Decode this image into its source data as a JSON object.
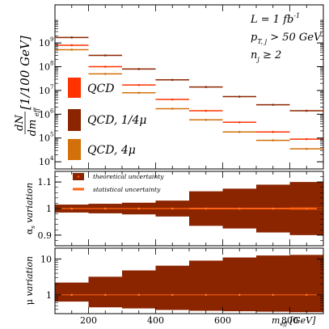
{
  "chart_data": [
    {
      "type": "scatter",
      "panel": "main",
      "ylabel_num": "dN",
      "ylabel_den": "dm",
      "ylabel_den_sub": "eff",
      "ylabel_unit": "[1/100 GeV]",
      "yscale": "log",
      "ylim": [
        5000,
        40000000000
      ],
      "y_tick_labels": [
        "10",
        "10",
        "10",
        "10",
        "10",
        "10"
      ],
      "y_tick_exponents": [
        "9",
        "8",
        "7",
        "6",
        "5",
        "4"
      ],
      "y_tick_values": [
        1000000000,
        100000000,
        10000000,
        1000000,
        100000,
        10000
      ],
      "xlim": [
        100,
        900
      ],
      "x": [
        150,
        250,
        350,
        450,
        550,
        650,
        750,
        850
      ],
      "series": [
        {
          "name": "QCD",
          "color": "#ff3300",
          "values": [
            800000000,
            100000000,
            17000000,
            4200000,
            1400000,
            460000,
            180000,
            90000
          ]
        },
        {
          "name": "QCD, 1/4μ",
          "color": "#8b2500",
          "values": [
            1700000000,
            300000000,
            80000000,
            28000000,
            14000000,
            5500000,
            2500000,
            1400000
          ]
        },
        {
          "name": "QCD, 4μ",
          "color": "#d2700a",
          "values": [
            520000000,
            50000000,
            8000000,
            1700000,
            580000,
            180000,
            80000,
            35000
          ]
        }
      ],
      "annotations": [
        {
          "text": "L = 1 fb",
          "sup": "-1"
        },
        {
          "text": "p",
          "sub": "T, j",
          "tail": " > 50 GeV"
        },
        {
          "text": "n",
          "sub": "j",
          "tail": " ≥ 2"
        }
      ]
    },
    {
      "type": "area",
      "panel": "alpha_s variation",
      "ylabel_main": "α",
      "ylabel_sub": "s",
      "ylabel_tail": " variation",
      "ylim": [
        0.86,
        1.14
      ],
      "y_tick_labels": [
        "1.1",
        "1",
        "0.9"
      ],
      "y_tick_values": [
        1.1,
        1.0,
        0.9
      ],
      "x_edges": [
        100,
        200,
        300,
        400,
        500,
        600,
        700,
        800,
        900
      ],
      "x": [
        150,
        250,
        350,
        450,
        550,
        650,
        750,
        850
      ],
      "band_low": [
        0.985,
        0.982,
        0.978,
        0.97,
        0.935,
        0.925,
        0.91,
        0.9
      ],
      "band_high": [
        1.015,
        1.018,
        1.022,
        1.03,
        1.065,
        1.075,
        1.09,
        1.1
      ],
      "stat_low": [
        0.998,
        0.998,
        0.998,
        0.998,
        0.997,
        0.997,
        0.997,
        0.996
      ],
      "stat_high": [
        1.002,
        1.002,
        1.002,
        1.002,
        1.003,
        1.003,
        1.003,
        1.004
      ],
      "values": [
        1,
        1,
        1,
        1,
        1,
        1,
        1,
        1
      ],
      "legend": [
        {
          "name": "theoretical uncertainty",
          "color": "#8b2500"
        },
        {
          "name": "statistical uncertainty",
          "color": "#ff6010"
        }
      ]
    },
    {
      "type": "area",
      "panel": "mu variation",
      "ylabel_main": "μ",
      "ylabel_tail": " variation",
      "yscale": "log",
      "ylim": [
        0.3,
        20
      ],
      "y_tick_labels": [
        "10",
        "1"
      ],
      "y_tick_values": [
        10,
        1
      ],
      "x_edges": [
        100,
        200,
        300,
        400,
        500,
        600,
        700,
        800,
        900
      ],
      "x": [
        150,
        250,
        350,
        450,
        550,
        650,
        750,
        850
      ],
      "band_low": [
        0.65,
        0.45,
        0.42,
        0.38,
        0.36,
        0.35,
        0.34,
        0.33
      ],
      "band_high": [
        2.2,
        3.2,
        4.8,
        6.5,
        9.0,
        11.0,
        12.5,
        13.0
      ],
      "values": [
        1,
        1,
        1,
        1,
        1,
        1,
        1,
        1
      ],
      "xlabel_main": "m",
      "xlabel_sub": "eff",
      "xlabel_unit": "[GeV]",
      "x_tick_labels": [
        "200",
        "400",
        "600",
        "800"
      ],
      "x_tick_values": [
        200,
        400,
        600,
        800
      ]
    }
  ]
}
